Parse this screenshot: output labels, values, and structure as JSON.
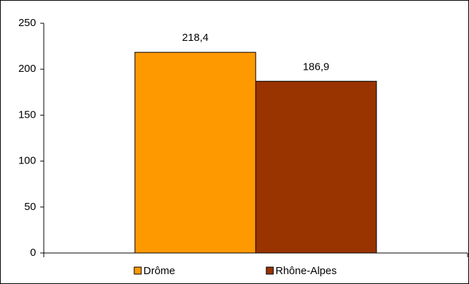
{
  "chart_data": {
    "type": "bar",
    "categories": [
      null
    ],
    "series": [
      {
        "name": "Drôme",
        "color": "#FF9900",
        "values": [
          218.4
        ],
        "value_labels": [
          "218,4"
        ]
      },
      {
        "name": "Rhône-Alpes",
        "color": "#993300",
        "values": [
          186.9
        ],
        "value_labels": [
          "186,9"
        ]
      }
    ],
    "ylim": [
      0,
      250
    ],
    "yticks": [
      0,
      50,
      100,
      150,
      200,
      250
    ],
    "grid": false,
    "legend": "bottom"
  }
}
